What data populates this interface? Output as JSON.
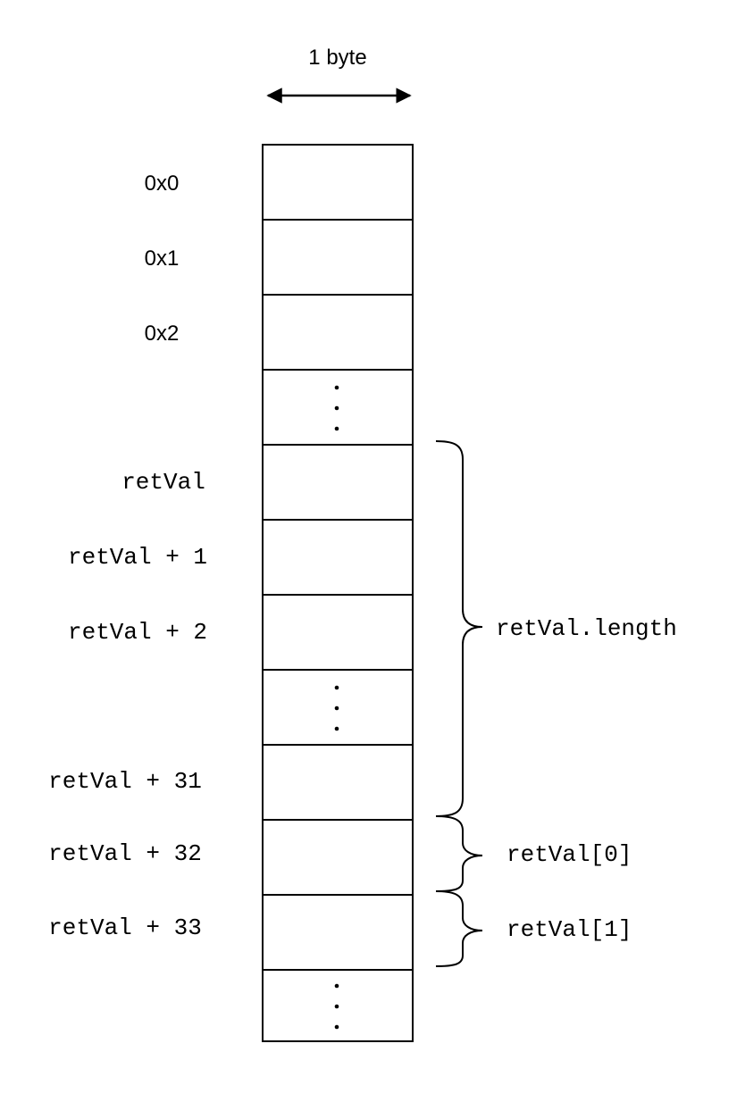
{
  "width_label": "1 byte",
  "addresses": [
    "0x0",
    "0x1",
    "0x2",
    "retVal",
    "retVal + 1",
    "retVal + 2",
    "retVal + 31",
    "retVal + 32",
    "retVal + 33"
  ],
  "annotations": {
    "length": "retVal.length",
    "elem0": "retVal[0]",
    "elem1": "retVal[1]"
  }
}
